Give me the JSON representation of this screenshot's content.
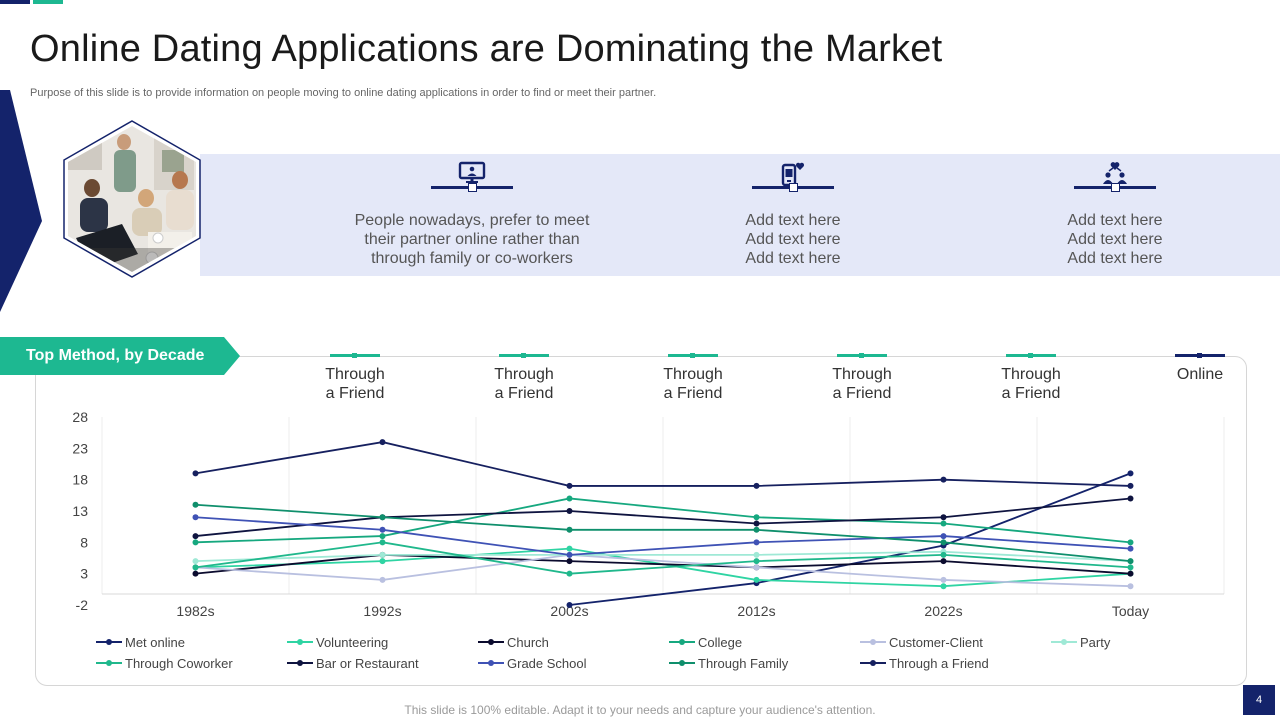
{
  "page": {
    "title": "Online Dating Applications are Dominating the Market",
    "subtitle": "Purpose of this slide is to provide information on people moving to online dating applications in order to find or meet their partner.",
    "footer": "This slide is 100% editable. Adapt it to your needs and capture your audience's attention.",
    "page_number": "4"
  },
  "colors": {
    "navy": "#14236b",
    "teal": "#1db891",
    "band": "#e4e8f8"
  },
  "info_blocks": [
    {
      "icon": "monitor-icon",
      "lines": [
        "People nowadays, prefer to meet",
        "their partner online rather than",
        "through family or co-workers"
      ]
    },
    {
      "icon": "mobile-heart-icon",
      "lines": [
        "Add text here",
        "Add text here",
        "Add text here"
      ]
    },
    {
      "icon": "couple-heart-icon",
      "lines": [
        "Add text here",
        "Add text here",
        "Add text here"
      ]
    }
  ],
  "decade_section": {
    "label": "Top Method, by Decade",
    "methods": [
      {
        "lines": [
          "Through",
          "a Friend"
        ],
        "color": "#1db891"
      },
      {
        "lines": [
          "Through",
          "a Friend"
        ],
        "color": "#1db891"
      },
      {
        "lines": [
          "Through",
          "a Friend"
        ],
        "color": "#1db891"
      },
      {
        "lines": [
          "Through",
          "a Friend"
        ],
        "color": "#1db891"
      },
      {
        "lines": [
          "Through",
          "a Friend"
        ],
        "color": "#1db891"
      },
      {
        "lines": [
          "Online"
        ],
        "color": "#14236b"
      }
    ]
  },
  "chart_data": {
    "type": "line",
    "title": "",
    "xlabel": "",
    "ylabel": "",
    "categories": [
      "1982s",
      "1992s",
      "2002s",
      "2012s",
      "2022s",
      "Today"
    ],
    "ylim": [
      -2,
      28
    ],
    "yticks": [
      -2,
      3,
      8,
      13,
      18,
      23,
      28
    ],
    "grid": "vertical",
    "legend_position": "bottom",
    "series": [
      {
        "name": "Met online",
        "color": "#14236b",
        "values": [
          null,
          null,
          -2,
          1.5,
          7.5,
          19
        ]
      },
      {
        "name": "Volunteering",
        "color": "#2fd4a3",
        "values": [
          4,
          5,
          7,
          2,
          1,
          3
        ]
      },
      {
        "name": "Church",
        "color": "#0b0b2e",
        "values": [
          3,
          6,
          5,
          4,
          5,
          3
        ]
      },
      {
        "name": "College",
        "color": "#16a87f",
        "values": [
          8,
          9,
          15,
          12,
          11,
          8
        ]
      },
      {
        "name": "Customer-Client",
        "color": "#b9c0e0",
        "values": [
          4,
          2,
          6,
          4,
          2,
          1
        ]
      },
      {
        "name": "Party",
        "color": "#9fe9d6",
        "values": [
          5,
          6,
          6,
          6,
          6.5,
          5
        ]
      },
      {
        "name": "Through Coworker",
        "color": "#20b88c",
        "values": [
          4,
          8,
          3,
          5,
          6,
          4
        ]
      },
      {
        "name": "Bar or Restaurant",
        "color": "#0f1440",
        "values": [
          9,
          12,
          13,
          11,
          12,
          15
        ]
      },
      {
        "name": "Grade School",
        "color": "#3f52b5",
        "values": [
          12,
          10,
          6,
          8,
          9,
          7
        ]
      },
      {
        "name": "Through Family",
        "color": "#0f8f6c",
        "values": [
          14,
          12,
          10,
          10,
          8,
          5
        ]
      },
      {
        "name": "Through a Friend",
        "color": "#16205f",
        "values": [
          19,
          24,
          17,
          17,
          18,
          17
        ]
      }
    ]
  }
}
